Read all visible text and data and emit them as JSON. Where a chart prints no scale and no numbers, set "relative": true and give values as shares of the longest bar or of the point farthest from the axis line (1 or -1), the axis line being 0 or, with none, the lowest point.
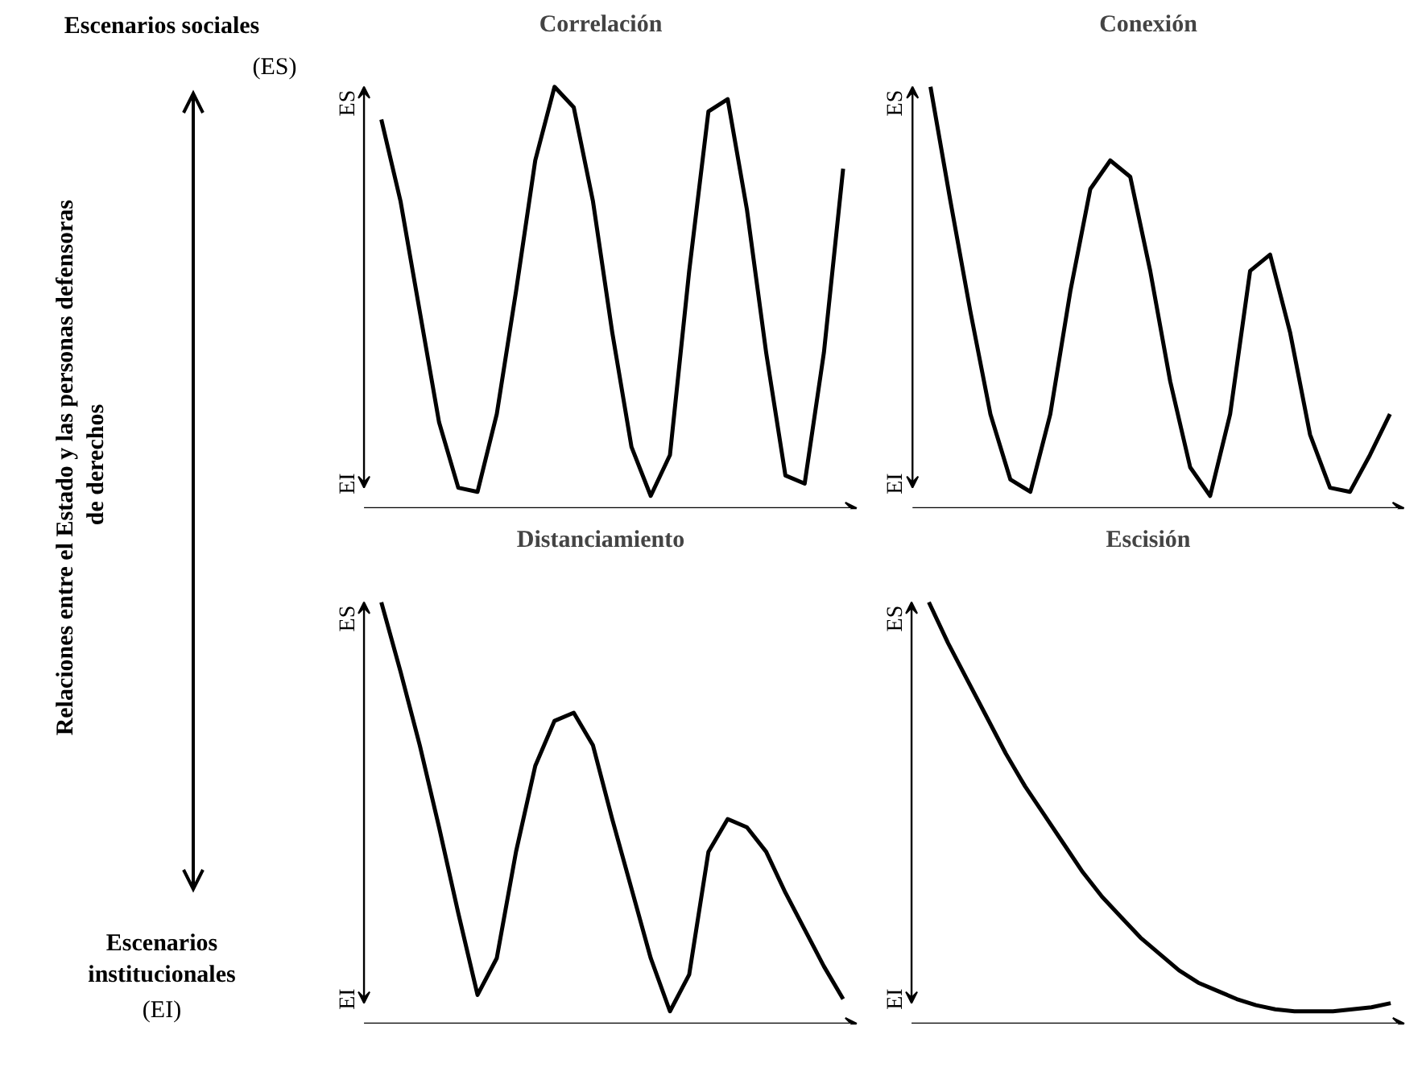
{
  "chart_data": [
    {
      "type": "line",
      "title": "Correlación",
      "color": "#000000",
      "relative": true,
      "annotations": [
        "ES",
        "EI"
      ],
      "categories": [
        null,
        null,
        null,
        null,
        null,
        null,
        null,
        null,
        null,
        null,
        null,
        null,
        null,
        null,
        null,
        null,
        null,
        null,
        null,
        null,
        null,
        null,
        null,
        null,
        null
      ],
      "values": [
        0.92,
        0.72,
        0.45,
        0.18,
        0.02,
        0.01,
        0.2,
        0.5,
        0.82,
        1.0,
        0.95,
        0.72,
        0.4,
        0.12,
        0.0,
        0.1,
        0.55,
        0.94,
        0.97,
        0.7,
        0.35,
        0.05,
        0.03,
        0.35,
        0.8
      ]
    },
    {
      "type": "line",
      "title": "Conexión",
      "color": "#000000",
      "relative": true,
      "annotations": [
        "ES",
        "EI"
      ],
      "categories": [
        null,
        null,
        null,
        null,
        null,
        null,
        null,
        null,
        null,
        null,
        null,
        null,
        null,
        null,
        null,
        null,
        null,
        null,
        null,
        null,
        null,
        null,
        null,
        null
      ],
      "values": [
        1.0,
        0.72,
        0.45,
        0.2,
        0.04,
        0.01,
        0.2,
        0.5,
        0.75,
        0.82,
        0.78,
        0.55,
        0.28,
        0.07,
        0.0,
        0.2,
        0.55,
        0.59,
        0.4,
        0.15,
        0.02,
        0.01,
        0.1,
        0.2
      ]
    },
    {
      "type": "line",
      "title": "Distanciamiento",
      "color": "#000000",
      "relative": true,
      "annotations": [
        "ES",
        "EI"
      ],
      "categories": [
        null,
        null,
        null,
        null,
        null,
        null,
        null,
        null,
        null,
        null,
        null,
        null,
        null,
        null,
        null,
        null,
        null,
        null,
        null,
        null,
        null,
        null,
        null,
        null,
        null
      ],
      "values": [
        1.0,
        0.83,
        0.65,
        0.45,
        0.24,
        0.04,
        0.13,
        0.39,
        0.6,
        0.71,
        0.73,
        0.65,
        0.47,
        0.3,
        0.13,
        0.0,
        0.09,
        0.39,
        0.47,
        0.45,
        0.39,
        0.29,
        0.2,
        0.11,
        0.03
      ]
    },
    {
      "type": "line",
      "title": "Escisión",
      "color": "#000000",
      "relative": true,
      "annotations": [
        "ES",
        "EI"
      ],
      "categories": [
        null,
        null,
        null,
        null,
        null,
        null,
        null,
        null,
        null,
        null,
        null,
        null,
        null,
        null,
        null,
        null,
        null,
        null,
        null,
        null,
        null,
        null,
        null,
        null,
        null
      ],
      "values": [
        1.0,
        0.9,
        0.81,
        0.72,
        0.63,
        0.55,
        0.48,
        0.41,
        0.34,
        0.28,
        0.23,
        0.18,
        0.14,
        0.1,
        0.07,
        0.05,
        0.03,
        0.015,
        0.005,
        0.0,
        0.0,
        0.0,
        0.005,
        0.01,
        0.02
      ]
    },
    {
      "type": "other",
      "annotations": [
        "Escenarios sociales",
        "(ES)",
        "Relaciones  entre el Estado y las personas defensoras\nde derechos",
        "Escenarios\ninstitucionales",
        "(EI)"
      ]
    }
  ]
}
